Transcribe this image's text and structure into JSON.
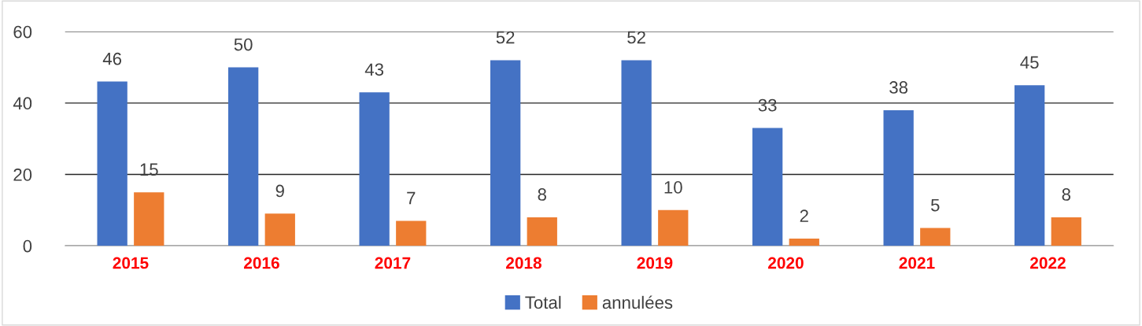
{
  "chart_data": {
    "type": "bar",
    "categories": [
      "2015",
      "2016",
      "2017",
      "2018",
      "2019",
      "2020",
      "2021",
      "2022"
    ],
    "series": [
      {
        "name": "Total",
        "color": "#4472c4",
        "values": [
          46,
          50,
          43,
          52,
          52,
          33,
          38,
          45
        ]
      },
      {
        "name": "annulées",
        "color": "#ed7d31",
        "values": [
          15,
          9,
          7,
          8,
          10,
          2,
          5,
          8
        ]
      }
    ],
    "ylim": [
      0,
      60
    ],
    "yticks": [
      0,
      20,
      40,
      60
    ],
    "grid": "y",
    "legend": "bottom",
    "data_labels": true
  }
}
